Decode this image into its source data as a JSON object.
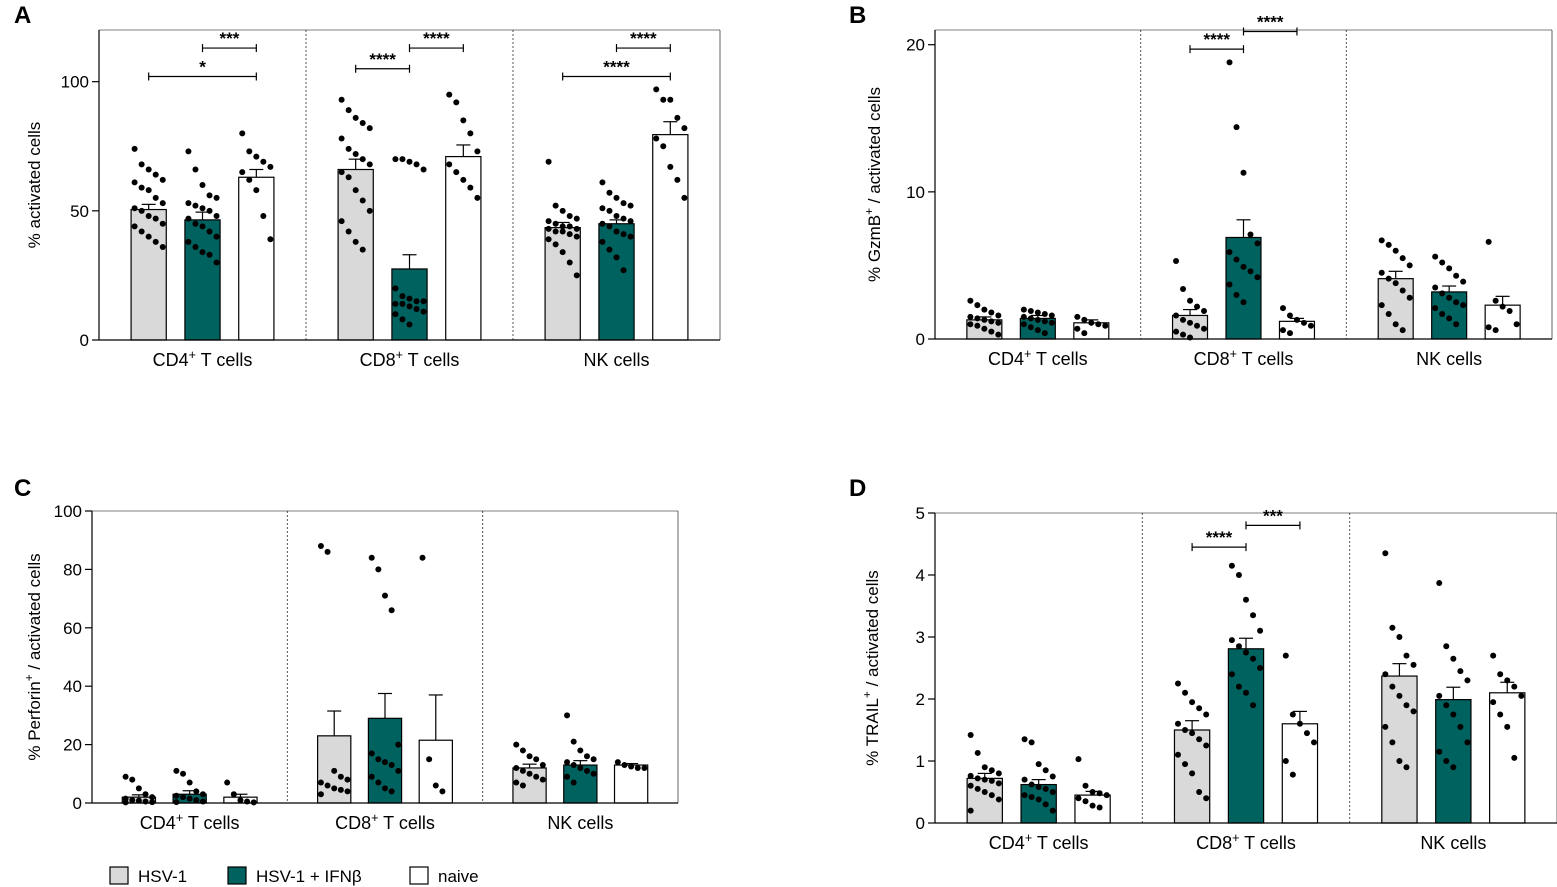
{
  "figure": {
    "colors": {
      "HSV-1": "#d9d9d9",
      "HSV-1 + IFNβ": "#00625f",
      "naive": "#ffffff"
    },
    "legend": [
      "HSV-1",
      "HSV-1 + IFNβ",
      "naive"
    ]
  },
  "chart_data": [
    {
      "panel": "A",
      "type": "bar",
      "ylabel": "% activated cells",
      "ylim": [
        0,
        120
      ],
      "yticks": [
        0,
        50,
        100
      ],
      "categories": [
        "CD4⁺ T cells",
        "CD8⁺ T cells",
        "NK cells"
      ],
      "series": [
        {
          "name": "HSV-1",
          "values": [
            50.5,
            66,
            43.5
          ],
          "sem": [
            2,
            4,
            2
          ],
          "points": [
            [
              74,
              68,
              66,
              64,
              62,
              61,
              59,
              58,
              55,
              53,
              51,
              50,
              48,
              47,
              45,
              44,
              42,
              40,
              38,
              36
            ],
            [
              93,
              89,
              86,
              84,
              82,
              78,
              74,
              72,
              70,
              68,
              65,
              63,
              58,
              54,
              50,
              46,
              42,
              38,
              35
            ],
            [
              69,
              52,
              50,
              48,
              47,
              46,
              45,
              44,
              44,
              43,
              43,
              42,
              42,
              41,
              40,
              39,
              37,
              34,
              30,
              25
            ]
          ]
        },
        {
          "name": "HSV-1 + IFNβ",
          "values": [
            46.5,
            27.5,
            45
          ],
          "sem": [
            3,
            5.5,
            1.5
          ],
          "points": [
            [
              73,
              66,
              60,
              56,
              55,
              53,
              52,
              51,
              50,
              48,
              47,
              45,
              44,
              42,
              40,
              38,
              36,
              34,
              33,
              30
            ],
            [
              70,
              70,
              69,
              68,
              66,
              20,
              17,
              16,
              15,
              15,
              14,
              14,
              13,
              12,
              11,
              10,
              8,
              6
            ],
            [
              61,
              57,
              55,
              53,
              52,
              51,
              50,
              48,
              47,
              46,
              45,
              44,
              42,
              41,
              40,
              38,
              35,
              32,
              27
            ]
          ]
        },
        {
          "name": "naive",
          "values": [
            63,
            71,
            79.5
          ],
          "sem": [
            3,
            4.5,
            5
          ],
          "points": [
            [
              80,
              73,
              71,
              69,
              67,
              65,
              62,
              58,
              48,
              39
            ],
            [
              95,
              92,
              85,
              80,
              73,
              68,
              65,
              62,
              59,
              55
            ],
            [
              97,
              93,
              93,
              86,
              82,
              78,
              75,
              67,
              62,
              55
            ]
          ]
        }
      ],
      "annotations": [
        {
          "label": "***",
          "group": "CD4⁺ T cells",
          "from": "HSV-1 + IFNβ",
          "to": "naive",
          "y": 113
        },
        {
          "label": "*",
          "group": "CD4⁺ T cells",
          "from": "HSV-1",
          "to": "naive",
          "y": 102
        },
        {
          "label": "****",
          "group": "CD8⁺ T cells",
          "from": "HSV-1",
          "to": "HSV-1 + IFNβ",
          "y": 105
        },
        {
          "label": "****",
          "group": "CD8⁺ T cells",
          "from": "HSV-1 + IFNβ",
          "to": "naive",
          "y": 113
        },
        {
          "label": "****",
          "group": "NK cells",
          "from": "HSV-1 + IFNβ",
          "to": "naive",
          "y": 113
        },
        {
          "label": "****",
          "group": "NK cells",
          "from": "HSV-1",
          "to": "naive",
          "y": 102
        }
      ]
    },
    {
      "panel": "B",
      "type": "bar",
      "ylabel": "% GzmB⁺ / activated cells",
      "ylim": [
        0,
        21
      ],
      "yticks": [
        0,
        10,
        20
      ],
      "categories": [
        "CD4⁺ T cells",
        "CD8⁺ T cells",
        "NK cells"
      ],
      "series": [
        {
          "name": "HSV-1",
          "values": [
            1.3,
            1.6,
            4.1
          ],
          "sem": [
            0.2,
            0.4,
            0.5
          ],
          "points": [
            [
              2.6,
              2.3,
              2.0,
              1.8,
              1.6,
              1.5,
              1.4,
              1.3,
              1.2,
              1.1,
              1.0,
              0.9,
              0.7,
              0.5,
              0.3
            ],
            [
              5.3,
              3.4,
              2.6,
              2.2,
              1.9,
              1.6,
              1.3,
              1.1,
              0.9,
              0.7,
              0.5,
              0.3,
              0.1
            ],
            [
              6.7,
              6.4,
              6.0,
              5.5,
              5.0,
              4.5,
              4.1,
              3.8,
              3.3,
              2.8,
              2.3,
              1.7,
              1.0,
              0.6
            ]
          ]
        },
        {
          "name": "HSV-1 + IFNβ",
          "values": [
            1.4,
            6.9,
            3.2
          ],
          "sem": [
            0.2,
            1.2,
            0.4
          ],
          "points": [
            [
              2.0,
              1.9,
              1.8,
              1.7,
              1.6,
              1.5,
              1.4,
              1.3,
              1.2,
              1.1,
              1.0,
              0.8,
              0.6,
              0.4
            ],
            [
              18.8,
              14.4,
              11.3,
              7.1,
              6.5,
              5.9,
              5.4,
              4.9,
              4.6,
              4.2,
              3.7,
              3.0,
              2.5
            ],
            [
              5.6,
              5.2,
              4.8,
              4.3,
              3.9,
              3.5,
              3.1,
              2.8,
              2.5,
              2.3,
              2.1,
              1.7,
              1.4,
              1.0
            ]
          ]
        },
        {
          "name": "naive",
          "values": [
            1.1,
            1.2,
            2.3
          ],
          "sem": [
            0.2,
            0.2,
            0.6
          ],
          "points": [
            [
              1.5,
              1.3,
              1.1,
              1.0,
              0.9,
              0.7,
              0.4
            ],
            [
              2.1,
              1.6,
              1.3,
              1.1,
              0.9,
              0.6,
              0.4
            ],
            [
              6.6,
              2.6,
              2.2,
              1.9,
              1.0,
              0.8,
              0.6
            ]
          ]
        }
      ],
      "annotations": [
        {
          "label": "****",
          "group": "CD8⁺ T cells",
          "from": "HSV-1",
          "to": "HSV-1 + IFNβ",
          "y": 19.7
        },
        {
          "label": "****",
          "group": "CD8⁺ T cells",
          "from": "HSV-1 + IFNβ",
          "to": "naive",
          "y": 20.9
        }
      ]
    },
    {
      "panel": "C",
      "type": "bar",
      "ylabel": "% Perforin⁺ / activated cells",
      "ylim": [
        0,
        100
      ],
      "yticks": [
        0,
        20,
        40,
        60,
        80,
        100
      ],
      "categories": [
        "CD4⁺ T cells",
        "CD8⁺ T cells",
        "NK cells"
      ],
      "series": [
        {
          "name": "HSV-1",
          "values": [
            2,
            23,
            12
          ],
          "sem": [
            0.8,
            8.5,
            1.3
          ],
          "points": [
            [
              9,
              8,
              5,
              3,
              2,
              1.5,
              1,
              0.8,
              0.5,
              0.3,
              0.2
            ],
            [
              88,
              86,
              11,
              9,
              8,
              7,
              6,
              5,
              4.5,
              4,
              3
            ],
            [
              20,
              18,
              16,
              15,
              13,
              12,
              11,
              10,
              9,
              8,
              7,
              6
            ]
          ]
        },
        {
          "name": "HSV-1 + IFNβ",
          "values": [
            3,
            29,
            13
          ],
          "sem": [
            1.2,
            8.5,
            1.5
          ],
          "points": [
            [
              11,
              10,
              7,
              4,
              3,
              2.5,
              2,
              1.5,
              1,
              0.5,
              0.3
            ],
            [
              84,
              80,
              71,
              66,
              20,
              17,
              15,
              14,
              13,
              11,
              9,
              7,
              5,
              4
            ],
            [
              30,
              21,
              18,
              16,
              15,
              14,
              13,
              12,
              11,
              10,
              9,
              7
            ]
          ]
        },
        {
          "name": "naive",
          "values": [
            2,
            21.5,
            13
          ],
          "sem": [
            1,
            15.5,
            0.5
          ],
          "points": [
            [
              7,
              3,
              1,
              0.5,
              0.2
            ],
            [
              84,
              15,
              6,
              4
            ],
            [
              14,
              13,
              12.5,
              12,
              12
            ]
          ]
        }
      ],
      "annotations": []
    },
    {
      "panel": "D",
      "type": "bar",
      "ylabel": "% TRAIL⁺ / activated cells",
      "ylim": [
        0,
        5
      ],
      "yticks": [
        0,
        1,
        2,
        3,
        4,
        5
      ],
      "categories": [
        "CD4⁺ T cells",
        "CD8⁺ T cells",
        "NK cells"
      ],
      "series": [
        {
          "name": "HSV-1",
          "values": [
            0.72,
            1.5,
            2.37
          ],
          "sem": [
            0.08,
            0.15,
            0.2
          ],
          "points": [
            [
              1.42,
              1.13,
              0.9,
              0.85,
              0.8,
              0.76,
              0.72,
              0.7,
              0.68,
              0.64,
              0.6,
              0.55,
              0.5,
              0.45,
              0.38,
              0.2
            ],
            [
              2.25,
              2.1,
              1.95,
              1.85,
              1.75,
              1.6,
              1.5,
              1.45,
              1.35,
              1.25,
              1.1,
              0.95,
              0.8,
              0.5,
              0.4
            ],
            [
              4.35,
              3.15,
              3.0,
              2.7,
              2.55,
              2.4,
              2.2,
              2.05,
              1.9,
              1.8,
              1.55,
              1.3,
              1.0,
              0.9
            ]
          ]
        },
        {
          "name": "HSV-1 + IFNβ",
          "values": [
            0.62,
            2.81,
            1.99
          ],
          "sem": [
            0.08,
            0.17,
            0.2
          ],
          "points": [
            [
              1.35,
              1.3,
              0.95,
              0.85,
              0.75,
              0.7,
              0.62,
              0.58,
              0.55,
              0.5,
              0.45,
              0.42,
              0.38,
              0.3,
              0.2
            ],
            [
              4.15,
              4.0,
              3.6,
              3.35,
              3.1,
              2.95,
              2.85,
              2.75,
              2.65,
              2.5,
              2.4,
              2.2,
              2.1,
              1.9
            ],
            [
              3.87,
              2.85,
              2.65,
              2.45,
              2.3,
              2.05,
              1.9,
              1.75,
              1.55,
              1.3,
              1.15,
              1.0,
              0.9
            ]
          ]
        },
        {
          "name": "naive",
          "values": [
            0.45,
            1.6,
            2.1
          ],
          "sem": [
            0.06,
            0.2,
            0.17
          ],
          "points": [
            [
              1.03,
              0.6,
              0.5,
              0.48,
              0.45,
              0.4,
              0.35,
              0.28,
              0.25
            ],
            [
              2.7,
              1.75,
              1.6,
              1.45,
              1.3,
              1.0,
              0.78
            ],
            [
              2.7,
              2.4,
              2.3,
              2.2,
              2.05,
              1.95,
              1.75,
              1.55,
              1.05
            ]
          ]
        }
      ],
      "annotations": [
        {
          "label": "****",
          "group": "CD8⁺ T cells",
          "from": "HSV-1",
          "to": "HSV-1 + IFNβ",
          "y": 4.45
        },
        {
          "label": "***",
          "group": "CD8⁺ T cells",
          "from": "HSV-1 + IFNβ",
          "to": "naive",
          "y": 4.8
        }
      ]
    }
  ]
}
